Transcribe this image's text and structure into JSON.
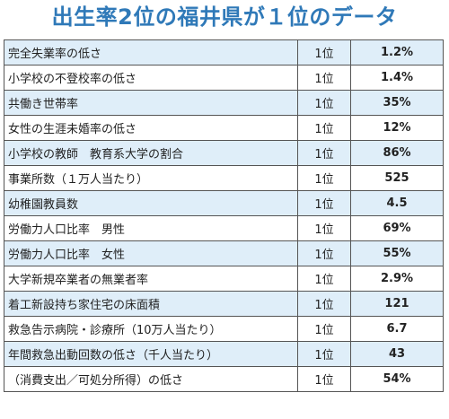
{
  "title": "出生率2位の福井県が１位のデータ",
  "rows": [
    {
      "item": "完全失業率の低さ",
      "rank": "1位",
      "value": "1.2%"
    },
    {
      "item": "小学校の不登校率の低さ",
      "rank": "1位",
      "value": "1.4%"
    },
    {
      "item": "共働き世帯率",
      "rank": "1位",
      "value": "35%"
    },
    {
      "item": "女性の生涯未婚率の低さ",
      "rank": "1位",
      "value": "12%"
    },
    {
      "item": "小学校の教師　教育系大学の割合",
      "rank": "1位",
      "value": "86%"
    },
    {
      "item": "事業所数（１万人当たり）",
      "rank": "1位",
      "value": "525"
    },
    {
      "item": "幼稚園教員数",
      "rank": "1位",
      "value": "4.5"
    },
    {
      "item": "労働力人口比率　男性",
      "rank": "1位",
      "value": "69%"
    },
    {
      "item": "労働力人口比率　女性",
      "rank": "1位",
      "value": "55%"
    },
    {
      "item": "大学新規卒業者の無業者率",
      "rank": "1位",
      "value": "2.9%"
    },
    {
      "item": "着工新設持ち家住宅の床面積",
      "rank": "1位",
      "value": "121"
    },
    {
      "item": "救急告示病院・診療所（10万人当たり）",
      "rank": "1位",
      "value": "6.7"
    },
    {
      "item": "年間救急出動回数の低さ（千人当たり）",
      "rank": "1位",
      "value": "43"
    },
    {
      "item": "（消費支出／可処分所得）の低さ",
      "rank": "1位",
      "value": "54%"
    }
  ],
  "colors": {
    "title": "#2f79b8",
    "row_highlight": "#dfeef9",
    "border": "#555555"
  }
}
